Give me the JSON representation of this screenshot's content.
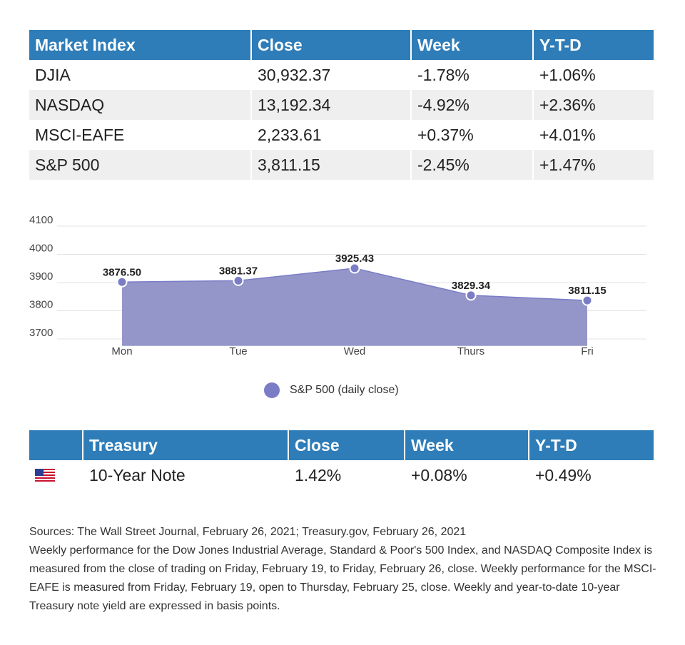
{
  "market_table": {
    "headers": [
      "Market Index",
      "Close",
      "Week",
      "Y-T-D"
    ],
    "rows": [
      [
        "DJIA",
        "30,932.37",
        "-1.78%",
        "+1.06%"
      ],
      [
        "NASDAQ",
        "13,192.34",
        "-4.92%",
        "+2.36%"
      ],
      [
        "MSCI-EAFE",
        "2,233.61",
        "+0.37%",
        "+4.01%"
      ],
      [
        "S&P 500",
        "3,811.15",
        "-2.45%",
        "+1.47%"
      ]
    ]
  },
  "chart_data": {
    "type": "area",
    "categories": [
      "Mon",
      "Tue",
      "Wed",
      "Thurs",
      "Fri"
    ],
    "series": [
      {
        "name": "S&P 500 (daily close)",
        "values": [
          3876.5,
          3881.37,
          3925.43,
          3829.34,
          3811.15
        ]
      }
    ],
    "data_labels": [
      "3876.50",
      "3881.37",
      "3925.43",
      "3829.34",
      "3811.15"
    ],
    "y_ticks": [
      3700,
      3800,
      3900,
      4000,
      4100
    ],
    "ylim": [
      3650,
      4125
    ],
    "grid": true,
    "legend_position": "bottom",
    "color": "#7a7dc6",
    "fill_color": "#9496c9"
  },
  "treasury_table": {
    "headers": [
      "",
      "Treasury",
      "Close",
      "Week",
      "Y-T-D"
    ],
    "rows": [
      [
        "us-flag-icon",
        "10-Year Note",
        "1.42%",
        "+0.08%",
        "+0.49%"
      ]
    ]
  },
  "notes": [
    "Sources: The Wall Street Journal, February 26, 2021; Treasury.gov, February 26, 2021",
    "Weekly performance for the Dow Jones Industrial Average, Standard & Poor's 500 Index, and NASDAQ Composite Index is measured from the close of trading on Friday, February 19, to Friday, February 26, close. Weekly performance for the MSCI-EAFE is measured from Friday, February 19, open to Thursday, February 25, close. Weekly and year-to-date 10-year Treasury note yield are expressed in basis points."
  ]
}
